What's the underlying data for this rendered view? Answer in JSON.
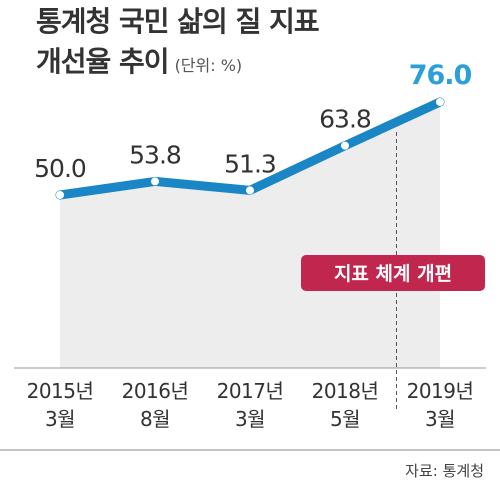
{
  "title_line1": "통계청 국민 삶의 질 지표",
  "title_line2": "개선율 추이",
  "unit": "(단위: %)",
  "annotation": "지표 체계 개편",
  "source": "자료: 통계청",
  "colors": {
    "line": "#1a86c6",
    "area": "#ededed",
    "last_value": "#2a9fd8",
    "badge": "#c0264e",
    "axis": "#999999"
  },
  "chart_data": {
    "type": "line",
    "categories": [
      [
        "2015년",
        "3월"
      ],
      [
        "2016년",
        "8월"
      ],
      [
        "2017년",
        "3월"
      ],
      [
        "2018년",
        "5월"
      ],
      [
        "2019년",
        "3월"
      ]
    ],
    "series": [
      {
        "values": [
          50.0,
          53.8,
          51.3,
          63.8,
          76.0
        ]
      }
    ],
    "value_labels": [
      "50.0",
      "53.8",
      "51.3",
      "63.8",
      "76.0"
    ],
    "highlight_index": 4,
    "marker_between": [
      3,
      4
    ]
  }
}
